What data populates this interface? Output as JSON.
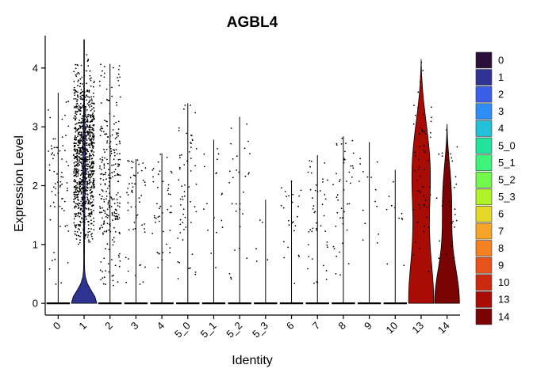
{
  "chart_data": {
    "type": "violin",
    "title": "AGBL4",
    "xlabel": "Identity",
    "ylabel": "Expression Level",
    "ylim": [
      -0.2,
      4.55
    ],
    "yticks": [
      0,
      1,
      2,
      3,
      4
    ],
    "categories": [
      "0",
      "1",
      "2",
      "3",
      "4",
      "5_0",
      "5_1",
      "5_2",
      "5_3",
      "6",
      "7",
      "8",
      "9",
      "10",
      "13",
      "14"
    ],
    "colors": [
      "#2a0f3a",
      "#2e3391",
      "#3a5ee6",
      "#2f8ef5",
      "#22c0d9",
      "#22e39d",
      "#3df57a",
      "#73f84c",
      "#b0f22a",
      "#e3d926",
      "#f7a529",
      "#f58222",
      "#e9521a",
      "#cc2a0f",
      "#a80c05",
      "#7a0403"
    ],
    "max_values": [
      3.58,
      4.48,
      4.07,
      2.45,
      2.55,
      3.4,
      2.78,
      3.17,
      1.76,
      2.08,
      2.52,
      2.84,
      2.74,
      2.27,
      4.15,
      3.05
    ],
    "points_per_group": [
      70,
      950,
      260,
      55,
      45,
      60,
      18,
      30,
      5,
      25,
      45,
      45,
      15,
      12,
      60,
      30
    ],
    "visible_violins": [
      "1",
      "13",
      "14"
    ],
    "legend": {
      "position": "right",
      "entries": [
        "0",
        "1",
        "2",
        "3",
        "4",
        "5_0",
        "5_1",
        "5_2",
        "5_3",
        "6",
        "7",
        "8",
        "9",
        "10",
        "13",
        "14"
      ]
    },
    "grid": false
  }
}
